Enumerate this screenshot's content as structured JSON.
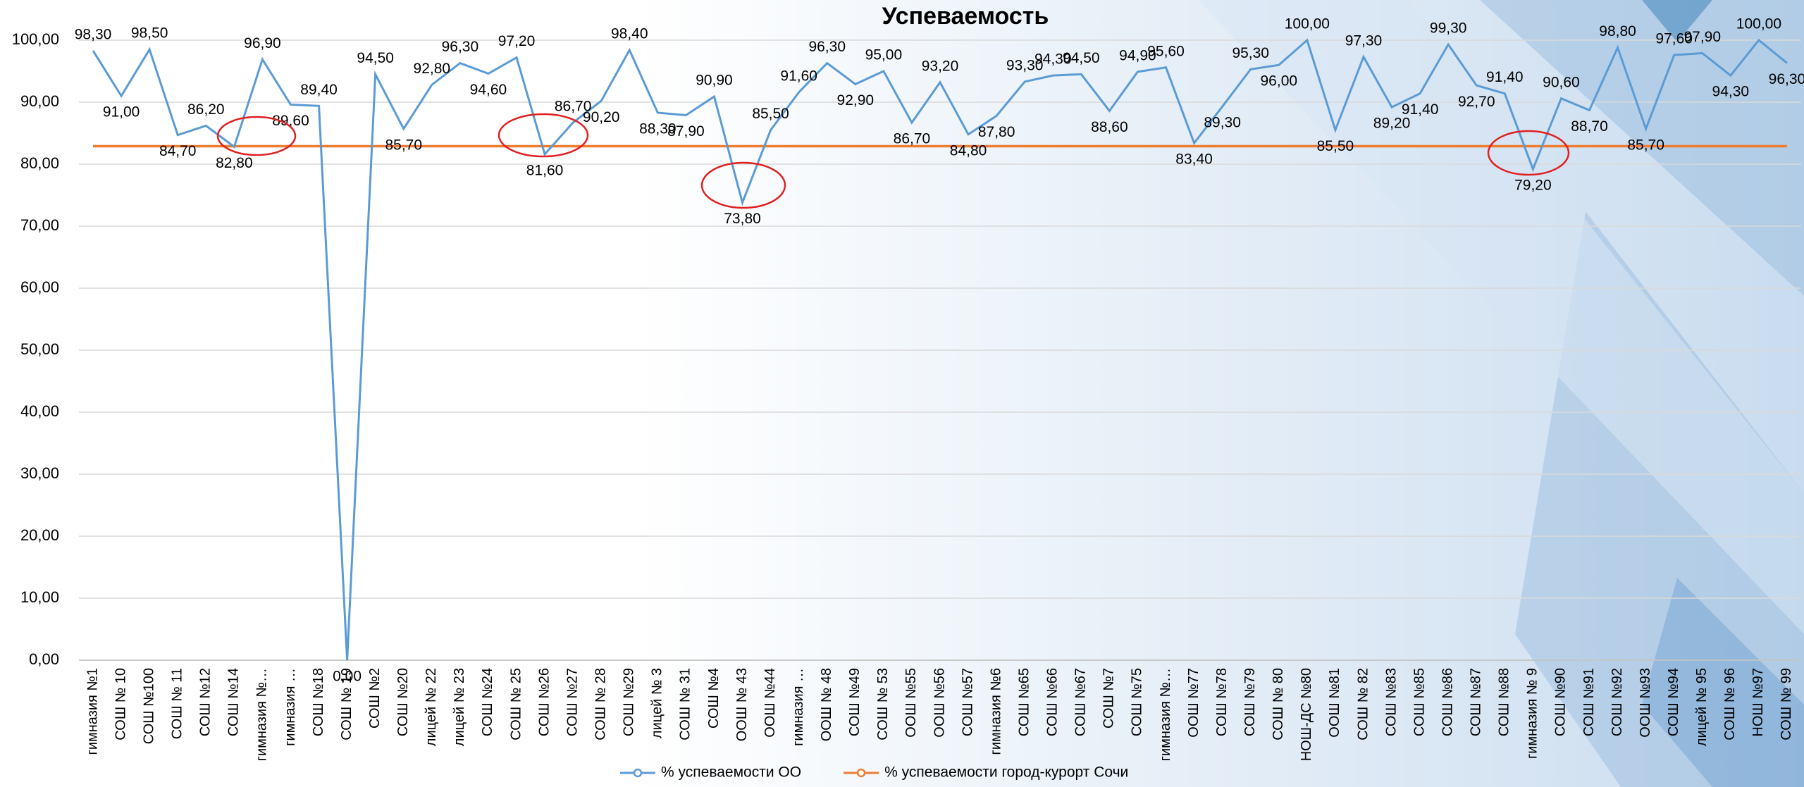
{
  "chart_data": {
    "type": "line",
    "title": "Успеваемость",
    "categories": [
      "гимназия №1",
      "СОШ № 10",
      "СОШ №100",
      "СОШ № 11",
      "СОШ №12",
      "СОШ №14",
      "гимназия №…",
      "гимназия …",
      "СОШ №18",
      "СОШ № 19",
      "СОШ №2",
      "СОШ №20",
      "лицей № 22",
      "лицей № 23",
      "СОШ №24",
      "СОШ № 25",
      "СОШ №26",
      "СОШ №27",
      "СОШ № 28",
      "СОШ №29",
      "лицей № 3",
      "СОШ № 31",
      "СОШ №4",
      "ООШ № 43",
      "ООШ №44",
      "гимназия …",
      "ООШ № 48",
      "СОШ №49",
      "СОШ № 53",
      "ООШ №55",
      "ООШ №56",
      "СОШ №57",
      "гимназия №6",
      "СОШ №65",
      "СОШ №66",
      "СОШ №67",
      "СОШ №7",
      "СОШ №75",
      "гимназия №…",
      "ООШ №77",
      "СОШ №78",
      "СОШ №79",
      "СОШ № 80",
      "НОШ-ДС №80",
      "ООШ №81",
      "СОШ № 82",
      "СОШ №83",
      "СОШ №85",
      "СОШ №86",
      "СОШ №87",
      "СОШ №88",
      "гимназия № 9",
      "СОШ №90",
      "СОШ №91",
      "СОШ №92",
      "ООШ №93",
      "СОШ №94",
      "лицей № 95",
      "СОШ № 96",
      "НОШ №97",
      "СОШ № 99"
    ],
    "series": [
      {
        "name": "% успеваемости ОО",
        "color": "#5b9bd5",
        "values": [
          98.3,
          91.0,
          98.5,
          84.7,
          86.2,
          82.8,
          96.9,
          89.6,
          89.4,
          0.0,
          94.5,
          85.7,
          92.8,
          96.3,
          94.6,
          97.2,
          81.6,
          86.7,
          90.2,
          98.4,
          88.3,
          87.9,
          90.9,
          73.8,
          85.5,
          91.6,
          96.3,
          92.9,
          95.0,
          86.7,
          93.2,
          84.8,
          87.8,
          93.3,
          94.3,
          94.5,
          88.6,
          94.9,
          95.6,
          83.4,
          89.3,
          95.3,
          96.0,
          100.0,
          85.5,
          97.3,
          89.2,
          91.4,
          99.3,
          92.7,
          91.4,
          79.2,
          90.6,
          88.7,
          98.8,
          85.7,
          97.6,
          97.9,
          94.3,
          100.0,
          96.3
        ],
        "value_labels": [
          "98,30",
          "91,00",
          "98,50",
          "84,70",
          "86,20",
          "82,80",
          "96,90",
          "89,60",
          "89,40",
          "0,00",
          "94,50",
          "85,70",
          "92,80",
          "96,30",
          "94,60",
          "97,20",
          "81,60",
          "86,70",
          "90,20",
          "98,40",
          "88,30",
          "87,90",
          "90,90",
          "73,80",
          "85,50",
          "91,60",
          "96,30",
          "92,90",
          "95,00",
          "86,70",
          "93,20",
          "84,80",
          "87,80",
          "93,30",
          "94,30",
          "94,50",
          "88,60",
          "94,90",
          "95,60",
          "83,40",
          "89,30",
          "95,30",
          "96,00",
          "100,00",
          "85,50",
          "97,30",
          "89,20",
          "91,40",
          "99,30",
          "92,70",
          "91,40",
          "79,20",
          "90,60",
          "88,70",
          "98,80",
          "85,70",
          "97,60",
          "97,90",
          "94,30",
          "100,00",
          "96,30"
        ]
      },
      {
        "name": "% успеваемости город-курорт Сочи",
        "color": "#ed7d31",
        "values": [
          82.9,
          82.9,
          82.9,
          82.9,
          82.9,
          82.9,
          82.9,
          82.9,
          82.9,
          82.9,
          82.9,
          82.9,
          82.9,
          82.9,
          82.9,
          82.9,
          82.9,
          82.9,
          82.9,
          82.9,
          82.9,
          82.9,
          82.9,
          82.9,
          82.9,
          82.9,
          82.9,
          82.9,
          82.9,
          82.9,
          82.9,
          82.9,
          82.9,
          82.9,
          82.9,
          82.9,
          82.9,
          82.9,
          82.9,
          82.9,
          82.9,
          82.9,
          82.9,
          82.9,
          82.9,
          82.9,
          82.9,
          82.9,
          82.9,
          82.9,
          82.9,
          82.9,
          82.9,
          82.9,
          82.9,
          82.9,
          82.9,
          82.9,
          82.9,
          82.9,
          82.9
        ]
      }
    ],
    "ylim": [
      0,
      100
    ],
    "yticks": [
      {
        "value": 0,
        "label": "0,00"
      },
      {
        "value": 10,
        "label": "10,00"
      },
      {
        "value": 20,
        "label": "20,00"
      },
      {
        "value": 30,
        "label": "30,00"
      },
      {
        "value": 40,
        "label": "40,00"
      },
      {
        "value": 50,
        "label": "50,00"
      },
      {
        "value": 60,
        "label": "60,00"
      },
      {
        "value": 70,
        "label": "70,00"
      },
      {
        "value": 80,
        "label": "80,00"
      },
      {
        "value": 90,
        "label": "90,00"
      },
      {
        "value": 100,
        "label": "100,00"
      }
    ],
    "grid": true,
    "legend": "bottom"
  }
}
